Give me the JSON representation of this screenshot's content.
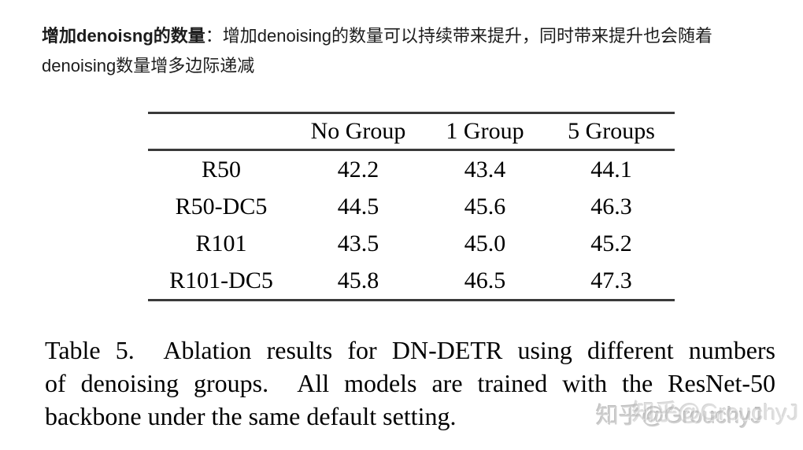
{
  "page": {
    "background": "#ffffff"
  },
  "intro": {
    "bold_text": "增加denoisng的数量",
    "separator": "：",
    "body_text": "增加denoising的数量可以持续带来提升，同时带来提升也会随着denoising数量增多边际递减"
  },
  "chart_data": {
    "type": "table",
    "title": "Table 5",
    "columns": [
      "",
      "No Group",
      "1 Group",
      "5 Groups"
    ],
    "rows": [
      {
        "label": "R50",
        "values": [
          "42.2",
          "43.4",
          "44.1"
        ]
      },
      {
        "label": "R50-DC5",
        "values": [
          "44.5",
          "45.6",
          "46.3"
        ]
      },
      {
        "label": "R101",
        "values": [
          "43.5",
          "45.0",
          "45.2"
        ]
      },
      {
        "label": "R101-DC5",
        "values": [
          "45.8",
          "46.5",
          "47.3"
        ]
      }
    ]
  },
  "caption": {
    "lines": [
      "Table 5.  Ablation results for DN-DETR using different numbers",
      "of denoising groups.  All models are trained with the ResNet-50",
      "backbone under the same default setting."
    ]
  },
  "watermark": {
    "text": "知乎@GrouchyJ"
  },
  "colors": {
    "intro_text": "#1c1c1c",
    "table_text": "#000000",
    "rule": "#3a3a3a",
    "watermark": "#c6c6c6"
  }
}
